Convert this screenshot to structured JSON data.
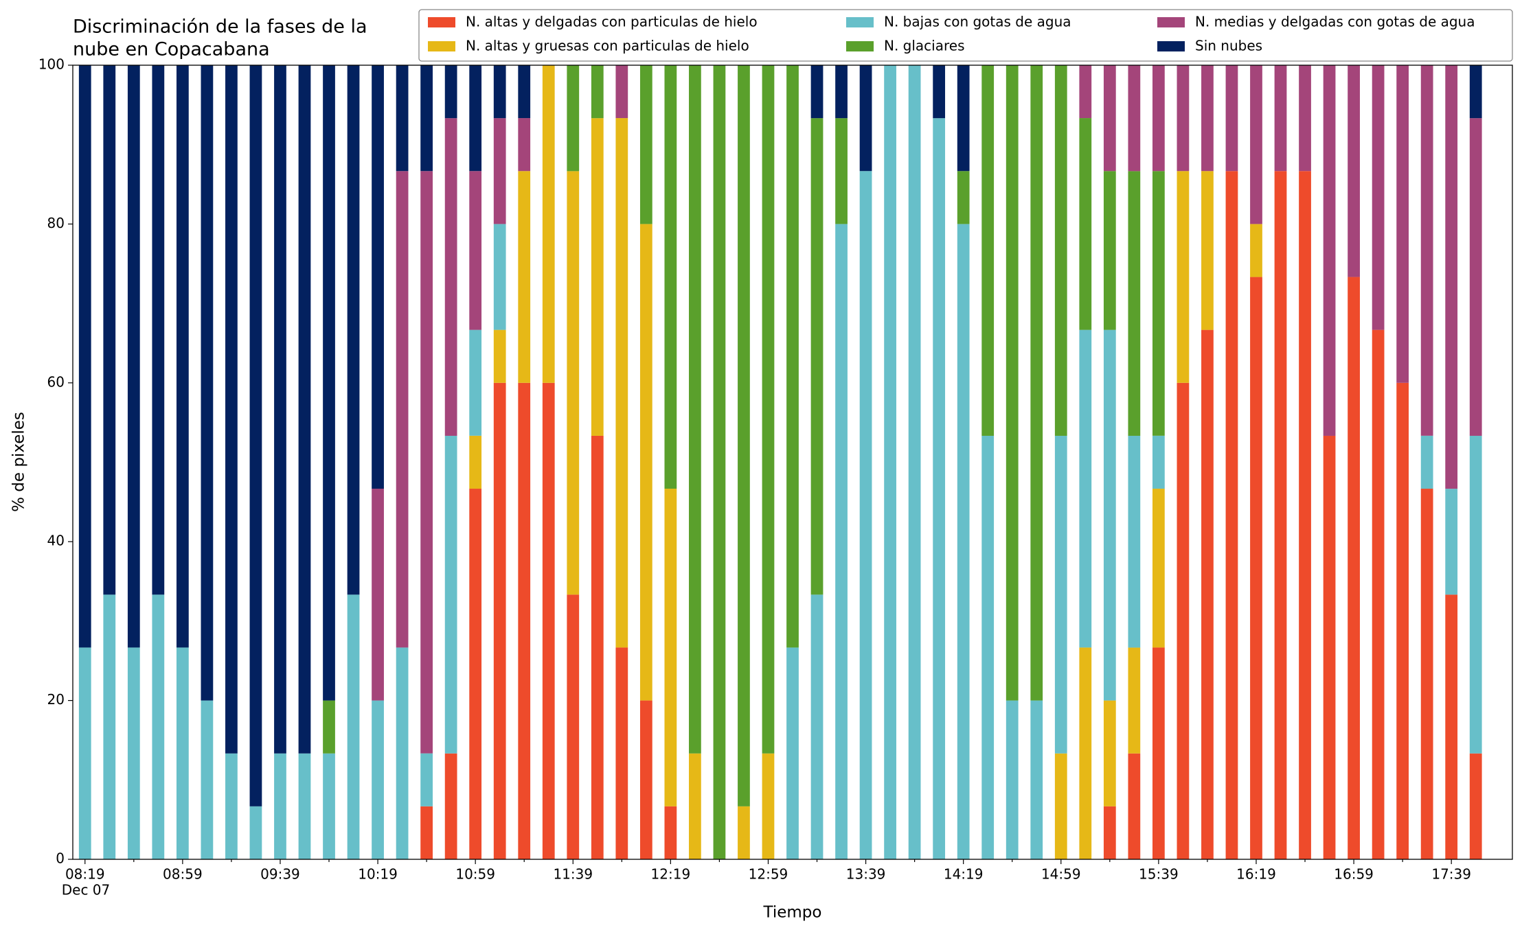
{
  "chart_data": {
    "type": "stacked_bar",
    "title": [
      "Discriminación de la fases de la",
      "nube en Copacabana"
    ],
    "xlabel": "Tiempo",
    "ylabel": "% de pixeles",
    "x_date_label": "Dec 07",
    "categories": [
      "08:19",
      null,
      null,
      null,
      "08:59",
      null,
      null,
      null,
      "09:39",
      null,
      null,
      null,
      "10:19",
      null,
      null,
      null,
      "10:59",
      null,
      null,
      null,
      "11:39",
      null,
      null,
      null,
      "12:19",
      null,
      null,
      null,
      "12:59",
      null,
      null,
      null,
      "13:39",
      null,
      null,
      null,
      "14:19",
      null,
      null,
      null,
      "14:59",
      null,
      null,
      null,
      "15:39",
      null,
      null,
      null,
      "16:19",
      null,
      null,
      null,
      "16:59",
      null,
      null,
      null,
      "17:39",
      null
    ],
    "ylim": [
      0,
      100
    ],
    "yticks": [
      0,
      20,
      40,
      60,
      80,
      100
    ],
    "legend": "upper right",
    "legend_ncol": 3,
    "series": [
      {
        "name": "N. altas y delgadas con particulas de hielo",
        "color": "#ee4b2b",
        "values": [
          0,
          0,
          0,
          0,
          0,
          0,
          0,
          0,
          0,
          0,
          0,
          0,
          0,
          0,
          6.67,
          13.33,
          46.67,
          60,
          60,
          60,
          33.33,
          53.33,
          26.67,
          20,
          6.67,
          0,
          0,
          0,
          0,
          0,
          0,
          0,
          0,
          0,
          0,
          0,
          0,
          0,
          0,
          0,
          0,
          0,
          6.67,
          13.33,
          26.67,
          60,
          66.67,
          86.67,
          73.33,
          86.67,
          86.67,
          53.33,
          73.33,
          66.67,
          60,
          46.67,
          33.33,
          13.33
        ]
      },
      {
        "name": "N. altas y gruesas con particulas de hielo",
        "color": "#e6b817",
        "values": [
          0,
          0,
          0,
          0,
          0,
          0,
          0,
          0,
          0,
          0,
          0,
          0,
          0,
          0,
          0,
          0,
          6.67,
          6.67,
          26.67,
          40,
          53.33,
          40,
          66.67,
          60,
          40,
          13.33,
          0,
          6.67,
          13.33,
          0,
          0,
          0,
          0,
          0,
          0,
          0,
          0,
          0,
          0,
          0,
          13.33,
          26.67,
          13.33,
          13.33,
          20,
          26.67,
          20,
          0,
          6.67,
          0,
          0,
          0,
          0,
          0,
          0,
          0,
          0,
          0
        ]
      },
      {
        "name": "N. bajas con gotas de agua",
        "color": "#67bfc9",
        "values": [
          26.67,
          33.33,
          26.67,
          33.33,
          26.67,
          20,
          13.33,
          6.67,
          13.33,
          13.33,
          13.33,
          33.33,
          20,
          26.67,
          6.67,
          40,
          13.33,
          13.33,
          0,
          0,
          0,
          0,
          0,
          0,
          0,
          0,
          0,
          0,
          0,
          26.67,
          33.33,
          80,
          86.67,
          100,
          100,
          93.33,
          80,
          53.33,
          20,
          20,
          40,
          40,
          46.67,
          26.67,
          6.67,
          0,
          0,
          0,
          0,
          0,
          0,
          0,
          0,
          0,
          0,
          6.67,
          13.33,
          40
        ]
      },
      {
        "name": "N. glaciares",
        "color": "#5aa02c",
        "values": [
          0,
          0,
          0,
          0,
          0,
          0,
          0,
          0,
          0,
          0,
          6.67,
          0,
          0,
          0,
          0,
          0,
          0,
          0,
          0,
          0,
          13.33,
          6.67,
          0,
          20,
          53.33,
          86.67,
          100,
          93.33,
          86.67,
          73.33,
          60,
          13.33,
          0,
          0,
          0,
          0,
          6.67,
          46.67,
          80,
          80,
          46.67,
          26.67,
          20,
          33.33,
          33.33,
          0,
          0,
          0,
          0,
          0,
          0,
          0,
          0,
          0,
          0,
          0,
          0,
          0
        ]
      },
      {
        "name": "N. medias y delgadas con gotas de agua",
        "color": "#a4457a",
        "values": [
          0,
          0,
          0,
          0,
          0,
          0,
          0,
          0,
          0,
          0,
          0,
          0,
          26.67,
          60,
          73.33,
          40,
          20,
          13.33,
          6.67,
          0,
          0,
          0,
          6.67,
          0,
          0,
          0,
          0,
          0,
          0,
          0,
          0,
          0,
          0,
          0,
          0,
          0,
          0,
          0,
          0,
          0,
          0,
          6.67,
          13.33,
          13.33,
          13.33,
          13.33,
          13.33,
          13.33,
          20,
          13.33,
          13.33,
          46.67,
          26.67,
          33.33,
          40,
          46.67,
          53.33,
          40
        ]
      },
      {
        "name": "Sin nubes",
        "color": "#03215f",
        "values": [
          73.33,
          66.67,
          73.33,
          66.67,
          73.33,
          80,
          86.67,
          93.33,
          86.67,
          86.67,
          80,
          66.67,
          53.33,
          13.33,
          13.33,
          6.67,
          13.33,
          6.67,
          6.67,
          0,
          0,
          0,
          0,
          0,
          0,
          0,
          0,
          0,
          0,
          0,
          6.67,
          6.67,
          13.33,
          0,
          0,
          6.67,
          13.33,
          0,
          0,
          0,
          0,
          0,
          0,
          0,
          0,
          0,
          0,
          0,
          0,
          0,
          0,
          0,
          0,
          0,
          0,
          0,
          0,
          6.67
        ]
      }
    ]
  }
}
